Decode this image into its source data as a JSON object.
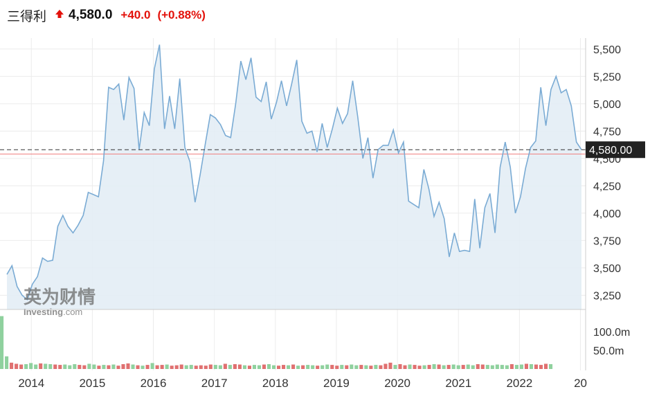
{
  "header": {
    "name": "三得利",
    "price": "4,580.0",
    "change": "+40.0",
    "change_pct": "(+0.88%)",
    "direction": "up",
    "up_color": "#e3120b"
  },
  "watermark": {
    "cn": "英为财情",
    "en": "Investing",
    "en_suffix": ".com"
  },
  "current_price_label": "4,580.00",
  "chart_data": {
    "type": "area",
    "title": "",
    "xlabel": "",
    "ylabel": "",
    "x_ticks": [
      "2014",
      "2015",
      "2016",
      "2017",
      "2018",
      "2019",
      "2020",
      "2021",
      "2022",
      "20"
    ],
    "y_ticks": [
      "3,250",
      "3,500",
      "3,750",
      "4,000",
      "4,250",
      "4,500",
      "4,750",
      "5,000",
      "5,250",
      "5,500"
    ],
    "y_tick_values": [
      3250,
      3500,
      3750,
      4000,
      4250,
      4500,
      4750,
      5000,
      5250,
      5500
    ],
    "ylim": [
      3120,
      5600
    ],
    "x_start": 2013.6,
    "current_price": 4580,
    "reference_line": 4540,
    "grid": true,
    "colors": {
      "line": "#7aabd4",
      "fill": "#e3edf5",
      "ref_line": "#f08080",
      "vol_up": "#8fd19e",
      "vol_down": "#e07070",
      "tag_bg": "#222222"
    },
    "series": [
      {
        "values": [
          3440,
          3520,
          3330,
          3250,
          3210,
          3350,
          3420,
          3590,
          3560,
          3570,
          3880,
          3980,
          3880,
          3820,
          3890,
          3980,
          4190,
          4170,
          4150,
          4480,
          5150,
          5130,
          5180,
          4850,
          5240,
          5140,
          4580,
          4920,
          4800,
          5320,
          5540,
          4770,
          5070,
          4770,
          5230,
          4600,
          4470,
          4100,
          4350,
          4630,
          4900,
          4870,
          4810,
          4710,
          4690,
          5000,
          5390,
          5220,
          5420,
          5060,
          5020,
          5200,
          4860,
          5010,
          5210,
          4980,
          5180,
          5400,
          4840,
          4730,
          4750,
          4560,
          4820,
          4600,
          4770,
          4960,
          4820,
          4910,
          5210,
          4880,
          4500,
          4690,
          4320,
          4580,
          4620,
          4620,
          4760,
          4550,
          4650,
          4110,
          4080,
          4050,
          4400,
          4220,
          3970,
          4100,
          3950,
          3600,
          3820,
          3650,
          3660,
          3650,
          4130,
          3680,
          4050,
          4180,
          3820,
          4420,
          4650,
          4420,
          4000,
          4150,
          4410,
          4600,
          4660,
          5150,
          4800,
          5130,
          5250,
          5100,
          5130,
          4980,
          4650,
          4580
        ]
      }
    ],
    "volume": {
      "unit_ticks": [
        "100.0m",
        "50.0m"
      ],
      "tick_values": [
        100,
        50
      ],
      "max": 145,
      "values": [
        142,
        34,
        17,
        14,
        12,
        13,
        16,
        12,
        15,
        14,
        13,
        12,
        11,
        12,
        10,
        13,
        11,
        10,
        14,
        12,
        9,
        11,
        10,
        12,
        9,
        13,
        15,
        12,
        10,
        9,
        11,
        16,
        10,
        11,
        12,
        9,
        10,
        12,
        10,
        11,
        9,
        10,
        9,
        12,
        11,
        10,
        14,
        11,
        13,
        12,
        10,
        9,
        11,
        10,
        12,
        13,
        10,
        9,
        11,
        10,
        12,
        9,
        10,
        11,
        10,
        9,
        10,
        12,
        11,
        9,
        11,
        10,
        12,
        10,
        11,
        10,
        9,
        11,
        10,
        14,
        17,
        11,
        13,
        10,
        12,
        11,
        9,
        10,
        11,
        13,
        12,
        10,
        11,
        12,
        10,
        11,
        12,
        10,
        13,
        12,
        11,
        10,
        12,
        11,
        10,
        13,
        11,
        12,
        14,
        13,
        12,
        11,
        14,
        13
      ],
      "up": [
        true,
        true,
        false,
        false,
        false,
        true,
        true,
        true,
        false,
        true,
        true,
        false,
        false,
        true,
        true,
        true,
        false,
        false,
        true,
        true,
        false,
        true,
        false,
        true,
        false,
        false,
        false,
        true,
        false,
        true,
        false,
        true,
        false,
        false,
        true,
        false,
        false,
        false,
        true,
        true,
        false,
        false,
        false,
        false,
        true,
        true,
        false,
        true,
        false,
        false,
        true,
        false,
        true,
        true,
        false,
        true,
        true,
        false,
        false,
        true,
        false,
        true,
        false,
        true,
        true,
        false,
        true,
        true,
        false,
        false,
        true,
        false,
        true,
        true,
        false,
        true,
        false,
        true,
        false,
        false,
        false,
        true,
        false,
        false,
        true,
        false,
        false,
        true,
        false,
        true,
        false,
        true,
        false,
        true,
        true,
        false,
        true,
        true,
        false,
        false,
        true,
        true,
        true,
        true,
        true,
        false,
        true,
        true,
        false,
        true,
        false,
        false,
        false,
        true
      ]
    }
  }
}
